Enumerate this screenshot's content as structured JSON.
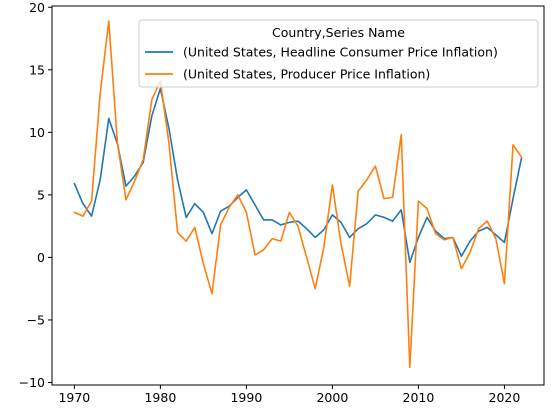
{
  "chart_data": {
    "type": "line",
    "title": "",
    "xlabel": "",
    "ylabel": "",
    "xlim": [
      1967.4,
      2024.6
    ],
    "ylim": [
      -10.2,
      20.1
    ],
    "xticks": [
      1970,
      1980,
      1990,
      2000,
      2010,
      2020
    ],
    "yticks": [
      -10,
      -5,
      0,
      5,
      10,
      15,
      20
    ],
    "grid": false,
    "legend": {
      "title": "Country,Series Name",
      "placement": "top-right"
    },
    "x": [
      1970,
      1971,
      1972,
      1973,
      1974,
      1975,
      1976,
      1977,
      1978,
      1979,
      1980,
      1981,
      1982,
      1983,
      1984,
      1985,
      1986,
      1987,
      1988,
      1989,
      1990,
      1991,
      1992,
      1993,
      1994,
      1995,
      1996,
      1997,
      1998,
      1999,
      2000,
      2001,
      2002,
      2003,
      2004,
      2005,
      2006,
      2007,
      2008,
      2009,
      2010,
      2011,
      2012,
      2013,
      2014,
      2015,
      2016,
      2017,
      2018,
      2019,
      2020,
      2021,
      2022
    ],
    "series": [
      {
        "name": "(United States, Headline Consumer Price Inflation)",
        "color": "#1f77b4",
        "values": [
          5.9,
          4.3,
          3.3,
          6.2,
          11.1,
          9.1,
          5.7,
          6.5,
          7.6,
          11.3,
          13.5,
          10.3,
          6.2,
          3.2,
          4.3,
          3.6,
          1.9,
          3.7,
          4.1,
          4.8,
          5.4,
          4.2,
          3.0,
          3.0,
          2.6,
          2.8,
          2.9,
          2.3,
          1.6,
          2.2,
          3.4,
          2.8,
          1.6,
          2.3,
          2.7,
          3.4,
          3.2,
          2.9,
          3.8,
          -0.4,
          1.6,
          3.2,
          2.1,
          1.5,
          1.6,
          0.1,
          1.3,
          2.1,
          2.4,
          1.8,
          1.2,
          4.7,
          8.0
        ]
      },
      {
        "name": "(United States, Producer Price Inflation)",
        "color": "#ff7f0e",
        "values": [
          3.6,
          3.3,
          4.5,
          13.1,
          18.9,
          9.2,
          4.6,
          6.1,
          7.8,
          12.6,
          14.1,
          9.1,
          2.0,
          1.3,
          2.4,
          -0.5,
          -2.9,
          2.6,
          4.0,
          5.0,
          3.6,
          0.2,
          0.6,
          1.5,
          1.3,
          3.6,
          2.5,
          0.0,
          -2.5,
          0.8,
          5.8,
          1.1,
          -2.3,
          5.3,
          6.2,
          7.3,
          4.7,
          4.8,
          9.8,
          -8.8,
          4.5,
          3.9,
          1.9,
          1.4,
          1.6,
          -0.9,
          0.4,
          2.3,
          2.9,
          1.5,
          -2.1,
          9.0,
          8.0
        ]
      }
    ]
  }
}
